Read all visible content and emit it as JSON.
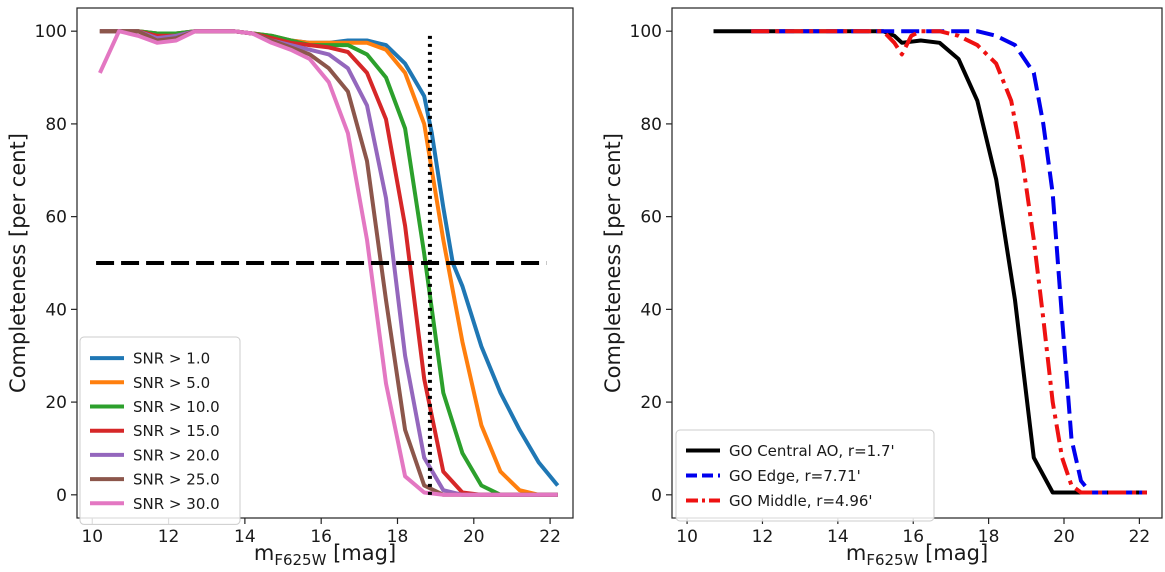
{
  "chart_data": [
    {
      "type": "line",
      "title": "",
      "xlabel_main": "m",
      "xlabel_sub": "F625W",
      "xlabel_unit": " [mag]",
      "ylabel": "Completeness [per cent]",
      "xlim": [
        9.6,
        22.6
      ],
      "ylim": [
        -5,
        105
      ],
      "xticks": [
        "10",
        "12",
        "14",
        "16",
        "18",
        "20",
        "22"
      ],
      "yticks": [
        "0",
        "20",
        "40",
        "60",
        "80",
        "100"
      ],
      "grid": false,
      "legend_position": "lower-left",
      "series": [
        {
          "name": "SNR > 1.0",
          "color": "#1f77b4",
          "style": "solid",
          "x": [
            10.2,
            10.7,
            11.2,
            11.7,
            12.2,
            12.7,
            13.2,
            13.7,
            14.2,
            14.7,
            15.2,
            15.7,
            16.2,
            16.7,
            17.2,
            17.7,
            18.2,
            18.7,
            18.9,
            19.2,
            19.45,
            19.7,
            20.2,
            20.7,
            21.2,
            21.7,
            22.2
          ],
          "y": [
            100,
            100,
            100,
            99.5,
            99.5,
            100,
            100,
            100,
            99.5,
            99,
            98,
            97.5,
            97.5,
            98,
            98,
            97,
            93,
            86,
            78,
            62,
            50,
            45,
            32,
            22,
            14,
            7,
            2
          ]
        },
        {
          "name": "SNR > 5.0",
          "color": "#ff7f0e",
          "style": "solid",
          "x": [
            10.2,
            10.7,
            11.2,
            11.7,
            12.2,
            12.7,
            13.2,
            13.7,
            14.2,
            14.7,
            15.2,
            15.7,
            16.2,
            16.7,
            17.2,
            17.7,
            18.2,
            18.7,
            19.2,
            19.7,
            20.2,
            20.7,
            21.2,
            21.7,
            22.2
          ],
          "y": [
            100,
            100,
            100,
            99.5,
            99.5,
            100,
            100,
            100,
            99.5,
            99,
            98,
            97.5,
            97.5,
            97.5,
            97.5,
            96,
            91,
            80,
            55,
            33,
            15,
            5,
            1,
            0,
            0
          ]
        },
        {
          "name": "SNR > 10.0",
          "color": "#2ca02c",
          "style": "solid",
          "x": [
            10.2,
            10.7,
            11.2,
            11.7,
            12.2,
            12.7,
            13.2,
            13.7,
            14.2,
            14.7,
            15.2,
            15.7,
            16.2,
            16.7,
            17.2,
            17.7,
            18.2,
            18.7,
            19.2,
            19.7,
            20.2,
            20.7,
            21.2,
            21.7,
            22.2
          ],
          "y": [
            100,
            100,
            100,
            99.5,
            99.5,
            100,
            100,
            100,
            99.5,
            99,
            98,
            97,
            97,
            97,
            95,
            90,
            79,
            52,
            22,
            9,
            2,
            0,
            0,
            0,
            0
          ]
        },
        {
          "name": "SNR > 15.0",
          "color": "#d62728",
          "style": "solid",
          "x": [
            10.2,
            10.7,
            11.2,
            11.7,
            12.2,
            12.7,
            13.2,
            13.7,
            14.2,
            14.7,
            15.2,
            15.7,
            16.2,
            16.7,
            17.2,
            17.7,
            18.2,
            18.7,
            19.2,
            19.7,
            20.2,
            20.7,
            21.2,
            21.7,
            22.2
          ],
          "y": [
            100,
            100,
            100,
            99,
            99,
            100,
            100,
            100,
            99.5,
            98.5,
            97.5,
            97,
            96.5,
            95.5,
            91,
            81,
            58,
            25,
            5,
            0.5,
            0,
            0,
            0,
            0,
            0
          ]
        },
        {
          "name": "SNR > 20.0",
          "color": "#9467bd",
          "style": "solid",
          "x": [
            10.2,
            10.7,
            11.2,
            11.7,
            12.2,
            12.7,
            13.2,
            13.7,
            14.2,
            14.7,
            15.2,
            15.7,
            16.2,
            16.7,
            17.2,
            17.7,
            18.2,
            18.7,
            19.2,
            19.7,
            20.2,
            20.7,
            21.2,
            21.7,
            22.2
          ],
          "y": [
            100,
            100,
            100,
            98.5,
            99,
            100,
            100,
            100,
            99.5,
            98,
            97,
            96,
            95,
            92,
            84,
            64,
            30,
            8,
            1,
            0,
            0,
            0,
            0,
            0,
            0
          ]
        },
        {
          "name": "SNR > 25.0",
          "color": "#8c564b",
          "style": "solid",
          "x": [
            10.2,
            10.7,
            11.2,
            11.7,
            12.2,
            12.7,
            13.2,
            13.7,
            14.2,
            14.7,
            15.2,
            15.7,
            16.2,
            16.7,
            17.2,
            17.7,
            18.2,
            18.7,
            19.2,
            19.7,
            20.2,
            20.7,
            21.2,
            21.7,
            22.2
          ],
          "y": [
            100,
            100,
            100,
            98,
            98.5,
            100,
            100,
            100,
            99.5,
            98,
            96.5,
            95,
            92,
            87,
            72,
            42,
            14,
            2,
            0,
            0,
            0,
            0,
            0,
            0,
            0
          ]
        },
        {
          "name": "SNR > 30.0",
          "color": "#e377c2",
          "style": "solid",
          "x": [
            10.2,
            10.7,
            11.2,
            11.7,
            12.2,
            12.7,
            13.2,
            13.7,
            14.2,
            14.7,
            15.2,
            15.7,
            16.2,
            16.7,
            17.2,
            17.7,
            18.2,
            18.7,
            19.2,
            19.7,
            20.2,
            20.7,
            21.2,
            21.7,
            22.2
          ],
          "y": [
            91,
            100,
            99,
            97.5,
            98,
            100,
            100,
            100,
            99.5,
            97.5,
            96,
            94,
            89,
            78,
            55,
            24,
            4,
            0.5,
            0,
            0,
            0,
            0,
            0,
            0,
            0
          ]
        }
      ],
      "reference_lines": [
        {
          "kind": "horizontal",
          "y": 50,
          "x_from": 10.1,
          "x_to": 21.9,
          "color": "#000000",
          "style": "dashed"
        },
        {
          "kind": "vertical",
          "x": 18.85,
          "y_from": 0,
          "y_to": 99,
          "color": "#000000",
          "style": "dotted"
        }
      ]
    },
    {
      "type": "line",
      "title": "",
      "xlabel_main": "m",
      "xlabel_sub": "F625W",
      "xlabel_unit": " [mag]",
      "ylabel": "Completeness [per cent]",
      "xlim": [
        9.6,
        22.6
      ],
      "ylim": [
        -5,
        105
      ],
      "xticks": [
        "10",
        "12",
        "14",
        "16",
        "18",
        "20",
        "22"
      ],
      "yticks": [
        "0",
        "20",
        "40",
        "60",
        "80",
        "100"
      ],
      "grid": false,
      "legend_position": "lower-left",
      "series": [
        {
          "name": "GO Central AO, r=1.7'",
          "color": "#000000",
          "style": "solid",
          "x": [
            10.7,
            11.7,
            12.7,
            13.7,
            14.7,
            15.2,
            15.5,
            15.7,
            16.2,
            16.7,
            17.2,
            17.7,
            18.2,
            18.7,
            19.2,
            19.7,
            20.2,
            20.7,
            21.2,
            21.7,
            22.2
          ],
          "y": [
            100,
            100,
            100,
            100,
            100,
            100,
            99,
            97.5,
            98,
            97.5,
            94,
            85,
            68,
            42,
            8,
            0.5,
            0.5,
            0.5,
            0.5,
            0.5,
            0.5
          ]
        },
        {
          "name": "GO Edge, r=7.71'",
          "color": "#0000ee",
          "style": "dashed",
          "x": [
            11.7,
            12.7,
            13.7,
            14.7,
            15.7,
            16.7,
            17.7,
            18.2,
            18.7,
            19.2,
            19.45,
            19.7,
            19.95,
            20.2,
            20.45,
            20.7,
            21.2,
            21.7,
            22.2
          ],
          "y": [
            100,
            100,
            100,
            100,
            100,
            100,
            100,
            99,
            97,
            91,
            80,
            65,
            38,
            12,
            3,
            0.5,
            0.5,
            0.5,
            0.5
          ]
        },
        {
          "name": "GO Middle, r=4.96'",
          "color": "#ee1111",
          "style": "dashdot",
          "x": [
            11.7,
            12.7,
            13.7,
            14.7,
            15.2,
            15.5,
            15.7,
            15.95,
            16.2,
            16.7,
            17.2,
            17.7,
            18.2,
            18.6,
            18.9,
            19.2,
            19.45,
            19.7,
            19.95,
            20.2,
            20.45,
            20.7,
            21.2,
            21.7,
            22.2
          ],
          "y": [
            100,
            100,
            100,
            100,
            100,
            97.5,
            95,
            99,
            100,
            100,
            99,
            97,
            93,
            85,
            72,
            55,
            38,
            20,
            8,
            2,
            0.5,
            0.5,
            0.5,
            0.5,
            0.5
          ]
        }
      ],
      "reference_lines": []
    }
  ]
}
